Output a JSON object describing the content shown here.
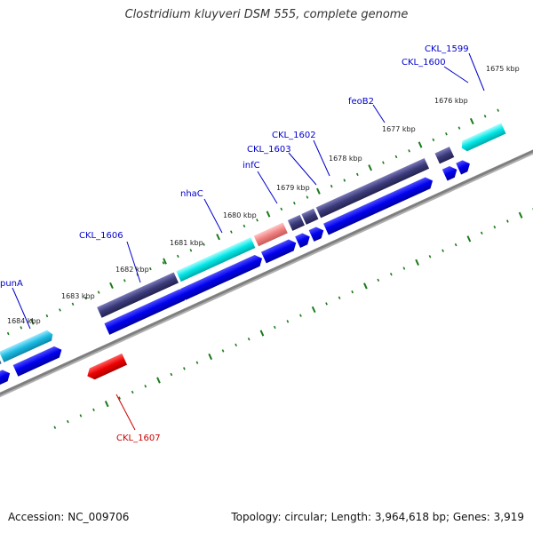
{
  "title": "Clostridium kluyveri DSM 555, complete genome",
  "accession": "Accession: NC_009706",
  "summary": "Topology: circular; Length: 3,964,618 bp; Genes: 3,919",
  "kbp_ticks": [
    "1675 kbp",
    "1676 kbp",
    "1677 kbp",
    "1678 kbp",
    "1679 kbp",
    "1680 kbp",
    "1681 kbp",
    "1682 kbp",
    "1683 kbp",
    "1684 kbp"
  ],
  "genes": [
    {
      "name": "CKL_1599",
      "color": "#0000cc"
    },
    {
      "name": "CKL_1600",
      "color": "#0000cc"
    },
    {
      "name": "feoB2",
      "color": "#0000cc"
    },
    {
      "name": "CKL_1602",
      "color": "#0000cc"
    },
    {
      "name": "CKL_1603",
      "color": "#0000cc"
    },
    {
      "name": "infC",
      "color": "#0000cc"
    },
    {
      "name": "nhaC",
      "color": "#0000cc"
    },
    {
      "name": "CKL_1606",
      "color": "#0000cc"
    },
    {
      "name": "punA",
      "color": "#0000cc"
    },
    {
      "name": "CKL_1607",
      "color": "#cc0000"
    }
  ],
  "colors": {
    "backbone": "#888888",
    "forward_blue": "#0000ee",
    "cog_dark": "#3b3a7a",
    "cog_cyan": "#00e5e5",
    "cog_pink": "#f08080",
    "reverse_red": "#ee0000",
    "tick_green": "#1a7a1a"
  }
}
